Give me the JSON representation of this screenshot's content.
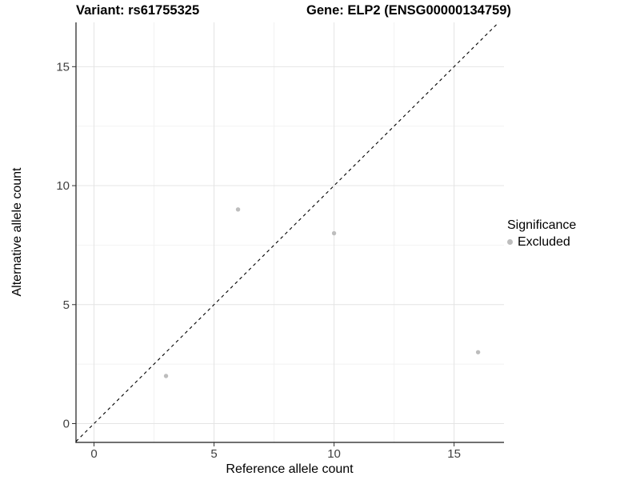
{
  "titles": {
    "variant": "Variant: rs61755325",
    "gene": "Gene: ELP2 (ENSG00000134759)"
  },
  "chart_data": {
    "type": "scatter",
    "xlabel": "Reference allele count",
    "ylabel": "Alternative allele count",
    "x_ticks": [
      0,
      5,
      10,
      15
    ],
    "y_ticks": [
      0,
      5,
      10,
      15
    ],
    "minor_breaks": [
      2.5,
      7.5,
      12.5
    ],
    "xlim": [
      -0.75,
      17.08
    ],
    "ylim": [
      -0.79,
      16.86
    ],
    "grid": true,
    "series": [
      {
        "name": "Excluded",
        "color": "#bdbdbd",
        "points": [
          {
            "x": 3,
            "y": 2
          },
          {
            "x": 6,
            "y": 9
          },
          {
            "x": 10,
            "y": 8
          },
          {
            "x": 16,
            "y": 3
          }
        ]
      }
    ],
    "reference_line": {
      "kind": "identity",
      "style": "dashed",
      "color": "#000000"
    },
    "legend": {
      "position": "right",
      "title": "Significance",
      "items": [
        {
          "label": "Excluded",
          "color": "#bdbdbd"
        }
      ]
    }
  },
  "colors": {
    "background": "#ffffff",
    "grid_major": "#e4e4e4",
    "grid_minor": "#f2f2f2",
    "axis_line": "#1a1a1a",
    "tick_mark": "#333333",
    "tick_text": "#404040",
    "point": "#bdbdbd"
  }
}
